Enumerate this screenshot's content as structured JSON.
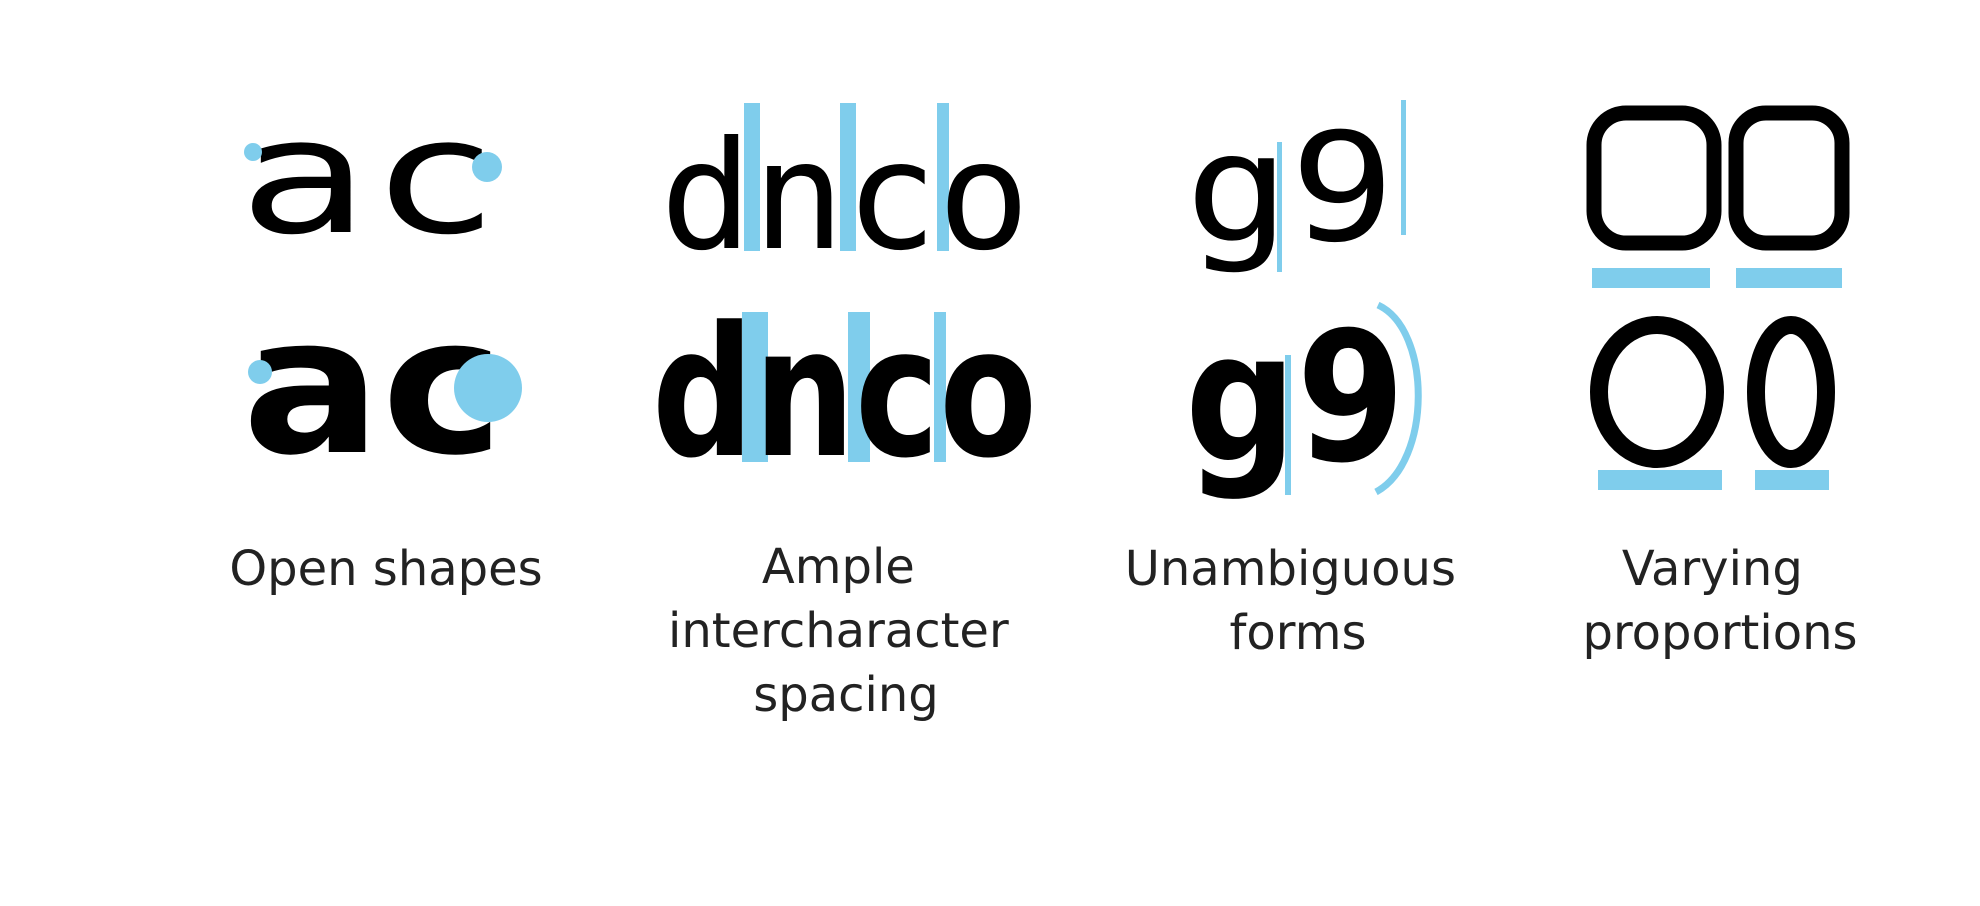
{
  "colors": {
    "accent": "#7fcdec",
    "ink": "#000000",
    "caption": "#222222"
  },
  "panels": [
    {
      "id": "open",
      "top_text": "ac",
      "bottom_text": "ac",
      "caption": [
        "Open shapes"
      ]
    },
    {
      "id": "spacing",
      "top_text": "dnco",
      "bottom_text": "dnco",
      "caption": [
        "Ample",
        "intercharacter",
        "spacing"
      ]
    },
    {
      "id": "forms",
      "top_text": "g9",
      "bottom_text": "g9",
      "caption": [
        "Unambiguous",
        "forms"
      ]
    },
    {
      "id": "proportions",
      "top_text": "OO",
      "bottom_text": "O0",
      "caption": [
        "Varying",
        "proportions"
      ]
    }
  ]
}
